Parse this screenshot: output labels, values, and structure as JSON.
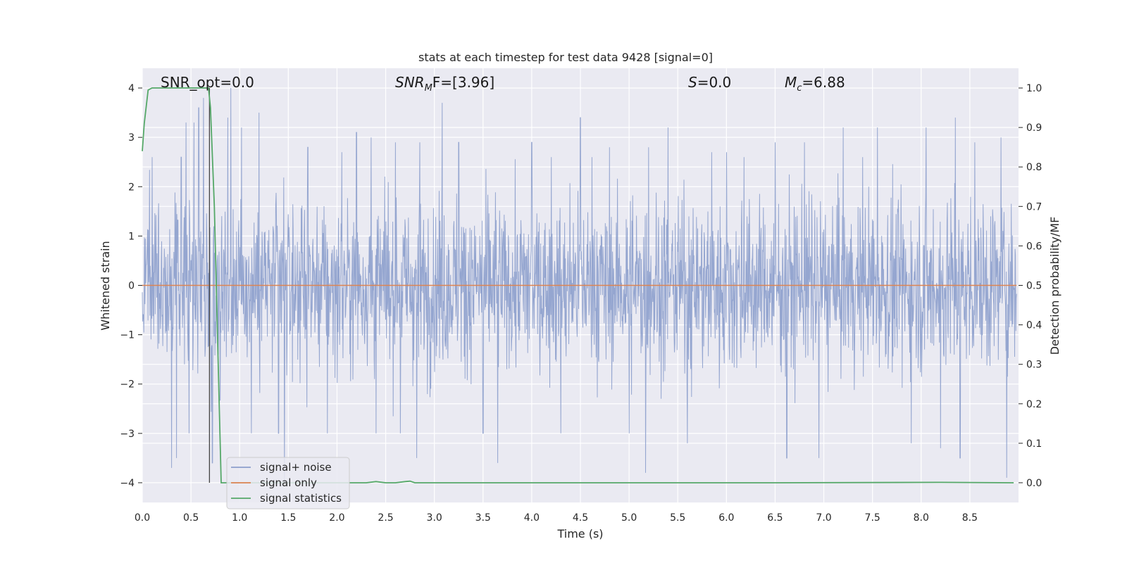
{
  "chart_data": {
    "type": "line",
    "title": "stats at each timestep for test data 9428 [signal=0]",
    "xlabel": "Time (s)",
    "ylabel": "Whitened strain",
    "y2label": "Detection probability/MF",
    "xlim": [
      0.0,
      9.0
    ],
    "ylim": [
      -4.4,
      4.4
    ],
    "y2lim": [
      -0.05,
      1.05
    ],
    "xticks": [
      "0.0",
      "0.5",
      "1.0",
      "1.5",
      "2.0",
      "2.5",
      "3.0",
      "3.5",
      "4.0",
      "4.5",
      "5.0",
      "5.5",
      "6.0",
      "6.5",
      "7.0",
      "7.5",
      "8.0",
      "8.5"
    ],
    "yticks": [
      "4",
      "3",
      "2",
      "1",
      "0",
      "−1",
      "−2",
      "−3",
      "−4"
    ],
    "y2ticks": [
      "1.0",
      "0.9",
      "0.8",
      "0.7",
      "0.6",
      "0.5",
      "0.4",
      "0.3",
      "0.2",
      "0.1",
      "0.0"
    ],
    "grid": true,
    "legend_position": "lower-left",
    "annotations": {
      "snr_opt": "SNR_opt=0.0",
      "snr_mf_base": "SNR",
      "snr_mf_sub": "M",
      "snr_mf_rest": "F=[3.96]",
      "s_var": "S",
      "s_rest": "=0.0",
      "mc_base": "M",
      "mc_sub": "c",
      "mc_rest": "=6.88"
    },
    "marker_time": 0.69,
    "series": [
      {
        "name": "signal+ noise",
        "color": "#8c9fcc",
        "axis": "left",
        "noise_std": 0.85,
        "peaks": [
          {
            "x": 0.1,
            "y": 2.6
          },
          {
            "x": 0.3,
            "y": -3.7
          },
          {
            "x": 0.35,
            "y": -3.5
          },
          {
            "x": 0.4,
            "y": 2.6
          },
          {
            "x": 0.45,
            "y": 3.3
          },
          {
            "x": 0.48,
            "y": -3.0
          },
          {
            "x": 0.53,
            "y": 3.3
          },
          {
            "x": 0.58,
            "y": 3.6
          },
          {
            "x": 0.63,
            "y": 3.8
          },
          {
            "x": 0.72,
            "y": -3.6
          },
          {
            "x": 0.88,
            "y": 3.4
          },
          {
            "x": 0.91,
            "y": 4.0
          },
          {
            "x": 1.02,
            "y": 3.2
          },
          {
            "x": 1.12,
            "y": -3.0
          },
          {
            "x": 1.2,
            "y": 3.5
          },
          {
            "x": 1.4,
            "y": -3.0
          },
          {
            "x": 1.46,
            "y": -4.0
          },
          {
            "x": 1.7,
            "y": 2.8
          },
          {
            "x": 1.9,
            "y": -3.0
          },
          {
            "x": 2.05,
            "y": 2.7
          },
          {
            "x": 2.2,
            "y": 3.1
          },
          {
            "x": 2.35,
            "y": 3.0
          },
          {
            "x": 2.4,
            "y": -3.0
          },
          {
            "x": 2.6,
            "y": 2.9
          },
          {
            "x": 2.65,
            "y": -3.0
          },
          {
            "x": 2.82,
            "y": -3.5
          },
          {
            "x": 2.85,
            "y": 2.9
          },
          {
            "x": 3.08,
            "y": 3.7
          },
          {
            "x": 3.25,
            "y": 2.9
          },
          {
            "x": 3.5,
            "y": -3.0
          },
          {
            "x": 3.65,
            "y": -3.6
          },
          {
            "x": 4.0,
            "y": 2.9
          },
          {
            "x": 4.2,
            "y": 2.6
          },
          {
            "x": 4.3,
            "y": -3.0
          },
          {
            "x": 4.5,
            "y": 3.4
          },
          {
            "x": 4.62,
            "y": 2.6
          },
          {
            "x": 4.8,
            "y": 2.8
          },
          {
            "x": 5.0,
            "y": -3.0
          },
          {
            "x": 5.17,
            "y": -3.8
          },
          {
            "x": 5.2,
            "y": 2.8
          },
          {
            "x": 5.4,
            "y": 3.2
          },
          {
            "x": 5.6,
            "y": -3.2
          },
          {
            "x": 5.85,
            "y": 2.7
          },
          {
            "x": 6.0,
            "y": 2.7
          },
          {
            "x": 6.18,
            "y": 2.6
          },
          {
            "x": 6.5,
            "y": 2.9
          },
          {
            "x": 6.62,
            "y": -3.5
          },
          {
            "x": 6.8,
            "y": 2.9
          },
          {
            "x": 6.95,
            "y": -3.5
          },
          {
            "x": 7.2,
            "y": 3.2
          },
          {
            "x": 7.4,
            "y": 2.6
          },
          {
            "x": 7.55,
            "y": 3.2
          },
          {
            "x": 7.9,
            "y": -3.2
          },
          {
            "x": 8.05,
            "y": 3.2
          },
          {
            "x": 8.2,
            "y": -3.3
          },
          {
            "x": 8.35,
            "y": 3.4
          },
          {
            "x": 8.4,
            "y": -3.5
          },
          {
            "x": 8.55,
            "y": 2.9
          },
          {
            "x": 8.82,
            "y": 3.0
          },
          {
            "x": 8.88,
            "y": -3.9
          }
        ]
      },
      {
        "name": "signal only",
        "color": "#dd8452",
        "axis": "left",
        "constant": 0.0
      },
      {
        "name": "signal statistics",
        "color": "#55a868",
        "axis": "right",
        "x": [
          0.0,
          0.02,
          0.06,
          0.1,
          0.2,
          0.4,
          0.6,
          0.68,
          0.7,
          0.74,
          0.78,
          0.81,
          0.85,
          1.0,
          2.0,
          2.3,
          2.4,
          2.5,
          2.6,
          2.7,
          2.75,
          2.8,
          3.0,
          6.4,
          6.5,
          8.2,
          8.95
        ],
        "values": [
          0.84,
          0.91,
          0.995,
          1.0,
          1.0,
          1.0,
          1.0,
          1.0,
          0.95,
          0.7,
          0.3,
          0.0,
          0.0,
          0.0,
          0.0,
          0.0,
          0.003,
          0.0,
          0.0,
          0.003,
          0.004,
          0.0,
          0.0,
          0.0,
          0.0,
          0.001,
          0.0
        ]
      }
    ]
  }
}
